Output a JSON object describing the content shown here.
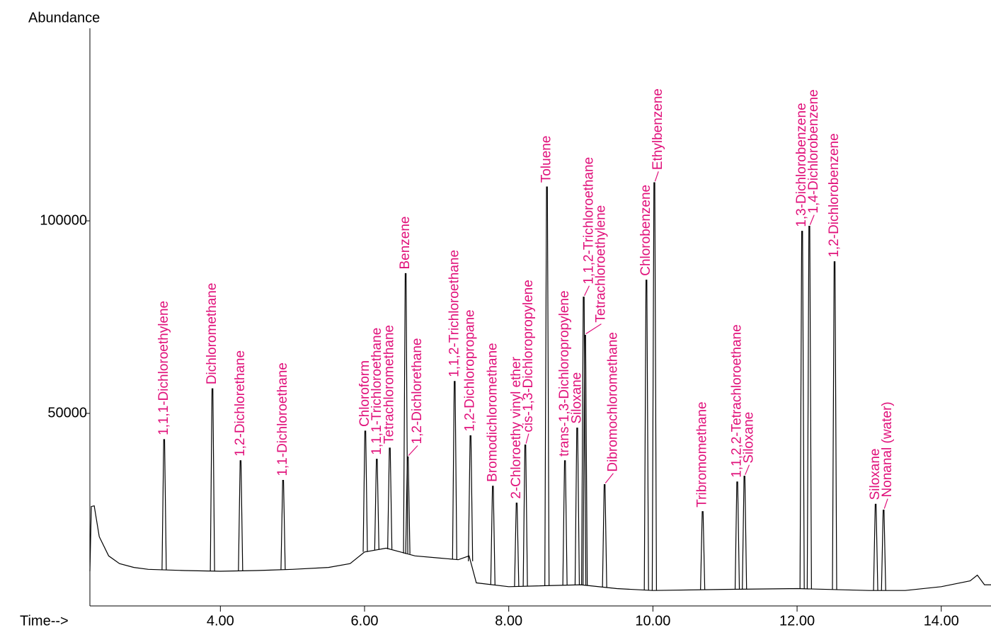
{
  "chart_data": {
    "type": "chromatogram",
    "y_label": "Abundance",
    "x_label": "Time-->",
    "xlim": [
      2.19,
      14.69
    ],
    "ylim": [
      0,
      150000
    ],
    "xticks": [
      {
        "value": 4,
        "label": "4.00"
      },
      {
        "value": 6,
        "label": "6.00"
      },
      {
        "value": 8,
        "label": "8.00"
      },
      {
        "value": 10,
        "label": "10.00"
      },
      {
        "value": 12,
        "label": "12.00"
      },
      {
        "value": 14,
        "label": "14.00"
      }
    ],
    "yticks": [
      50000,
      100000
    ],
    "line_color": "#000000",
    "label_color": "#e0107a",
    "baseline": {
      "x": [
        2.19,
        2.21,
        2.25,
        2.32,
        2.45,
        2.6,
        2.8,
        3.0,
        3.5,
        4.0,
        4.5,
        5.0,
        5.5,
        5.8,
        6.0,
        6.3,
        6.5,
        6.7,
        7.0,
        7.3,
        7.45,
        7.55,
        8.0,
        9.0,
        9.5,
        10.0,
        11.0,
        12.0,
        13.0,
        13.5,
        14.0,
        14.4,
        14.5,
        14.6,
        14.69
      ],
      "values": [
        9000,
        25800,
        26000,
        18000,
        13000,
        11000,
        10000,
        9500,
        9200,
        9000,
        9200,
        9500,
        10000,
        11000,
        14000,
        15000,
        14000,
        13000,
        12500,
        12000,
        13000,
        6000,
        5000,
        5500,
        4500,
        4000,
        4300,
        4500,
        4000,
        4000,
        5000,
        6500,
        8000,
        5500,
        5500
      ]
    },
    "peaks": {
      "x": [
        3.22,
        3.89,
        4.28,
        4.87,
        6.01,
        6.17,
        6.35,
        6.57,
        6.6,
        7.25,
        7.47,
        7.78,
        8.11,
        8.23,
        8.53,
        8.78,
        8.95,
        9.04,
        9.06,
        9.33,
        9.91,
        10.02,
        10.69,
        11.17,
        11.27,
        12.07,
        12.17,
        12.52,
        13.09,
        13.2
      ],
      "values": [
        43200,
        56400,
        37700,
        32600,
        45400,
        38100,
        41000,
        86300,
        38700,
        58300,
        44200,
        31100,
        26700,
        41800,
        108800,
        37700,
        46200,
        80200,
        70300,
        31500,
        84600,
        109900,
        24500,
        32200,
        33700,
        97300,
        98600,
        89400,
        26400,
        24900
      ],
      "labels": [
        "1,1,1-Dichloroethylene",
        "Dichloromethane",
        "1,2-Dichlorethane",
        "1,1-Dichloroethane",
        "Chloroform",
        "1,1,1-Trichloroethane",
        "Tetrachloromethane",
        "Benzene",
        "1,2-Dichlorethane",
        "1,1,2-Trichloroethane",
        "1,2-Dichloropropane",
        "Bromodichloromethane",
        "2-Chloroethy vinyl ether",
        "cis-1,3-Dichloropropylene",
        "Toluene",
        "trans-1,3-Dichloropropylene",
        "Siloxane",
        "1,1,2-Trichloroethane",
        "Tetrachloroethylene",
        "Dibromochloromethane",
        "Chlorobenzene",
        "Ethylbenzene",
        "Tribromomethane",
        "1,1,2,2-Tetrachloroethane",
        "Siloxane",
        "1,3-Dichlorobenzene",
        "1,4-Dichlorobenzene",
        "1,2-Dichlorobenzene",
        "Siloxane",
        "Nonanal (water)"
      ]
    }
  }
}
